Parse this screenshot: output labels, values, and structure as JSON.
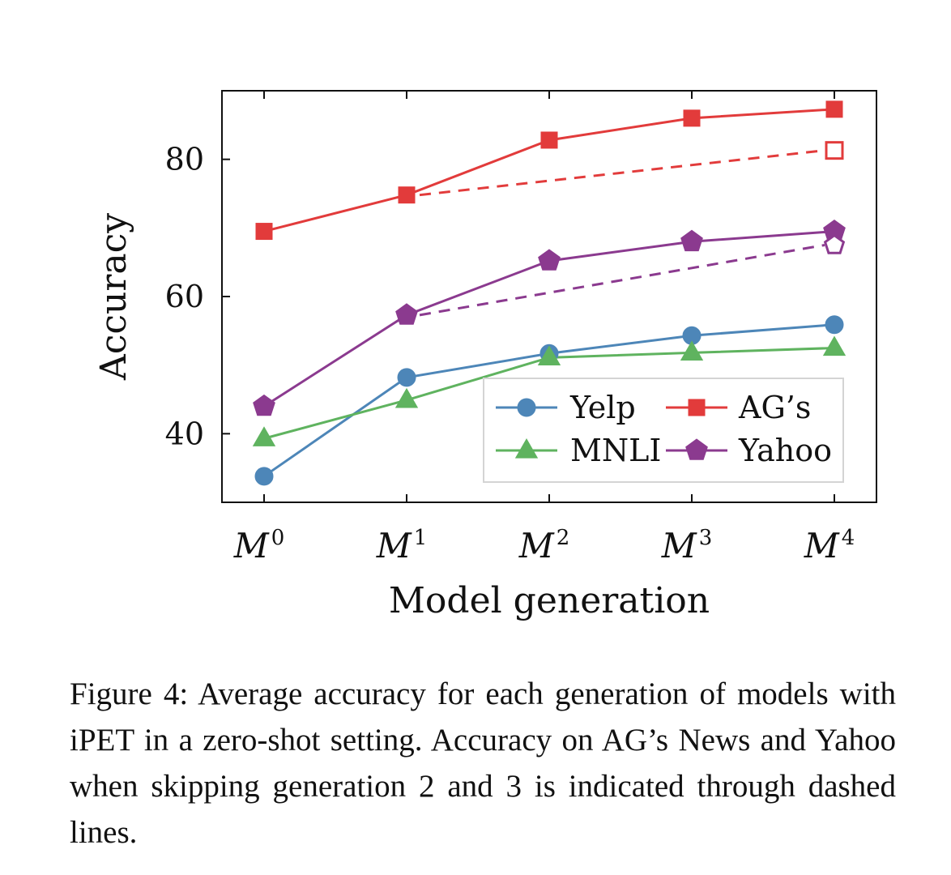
{
  "chart_data": {
    "type": "line",
    "xlabel": "Model generation",
    "ylabel": "Accuracy",
    "ylim": [
      30,
      90
    ],
    "yticks": [
      40,
      60,
      80
    ],
    "categories": [
      {
        "base": "M",
        "sup": "0"
      },
      {
        "base": "M",
        "sup": "1"
      },
      {
        "base": "M",
        "sup": "2"
      },
      {
        "base": "M",
        "sup": "3"
      },
      {
        "base": "M",
        "sup": "4"
      }
    ],
    "series": [
      {
        "name": "Yelp",
        "color": "#4d86b8",
        "marker": "circle",
        "values": [
          33.8,
          48.2,
          51.7,
          54.3,
          55.9
        ]
      },
      {
        "name": "MNLI",
        "color": "#5fb35f",
        "marker": "triangle",
        "values": [
          39.3,
          44.9,
          51.1,
          51.8,
          52.5
        ]
      },
      {
        "name": "AG’s",
        "color": "#e23b3b",
        "marker": "square",
        "values": [
          69.5,
          74.8,
          82.8,
          86.0,
          87.3
        ],
        "dashed": {
          "from_index": 1,
          "to_index": 4,
          "end_value": 81.3
        }
      },
      {
        "name": "Yahoo",
        "color": "#8b3a8f",
        "marker": "pentagon",
        "values": [
          44.0,
          57.3,
          65.2,
          68.0,
          69.5
        ],
        "dashed": {
          "from_index": 1,
          "to_index": 4,
          "end_value": 67.5
        }
      }
    ],
    "grid": false,
    "legend_position": "bottom-right"
  },
  "caption": {
    "label": "Figure 4:",
    "text": "Average accuracy for each generation of models with iPET in a zero-shot setting. Accuracy on AG’s News and Yahoo when skipping generation 2 and 3 is indicated through dashed lines."
  }
}
